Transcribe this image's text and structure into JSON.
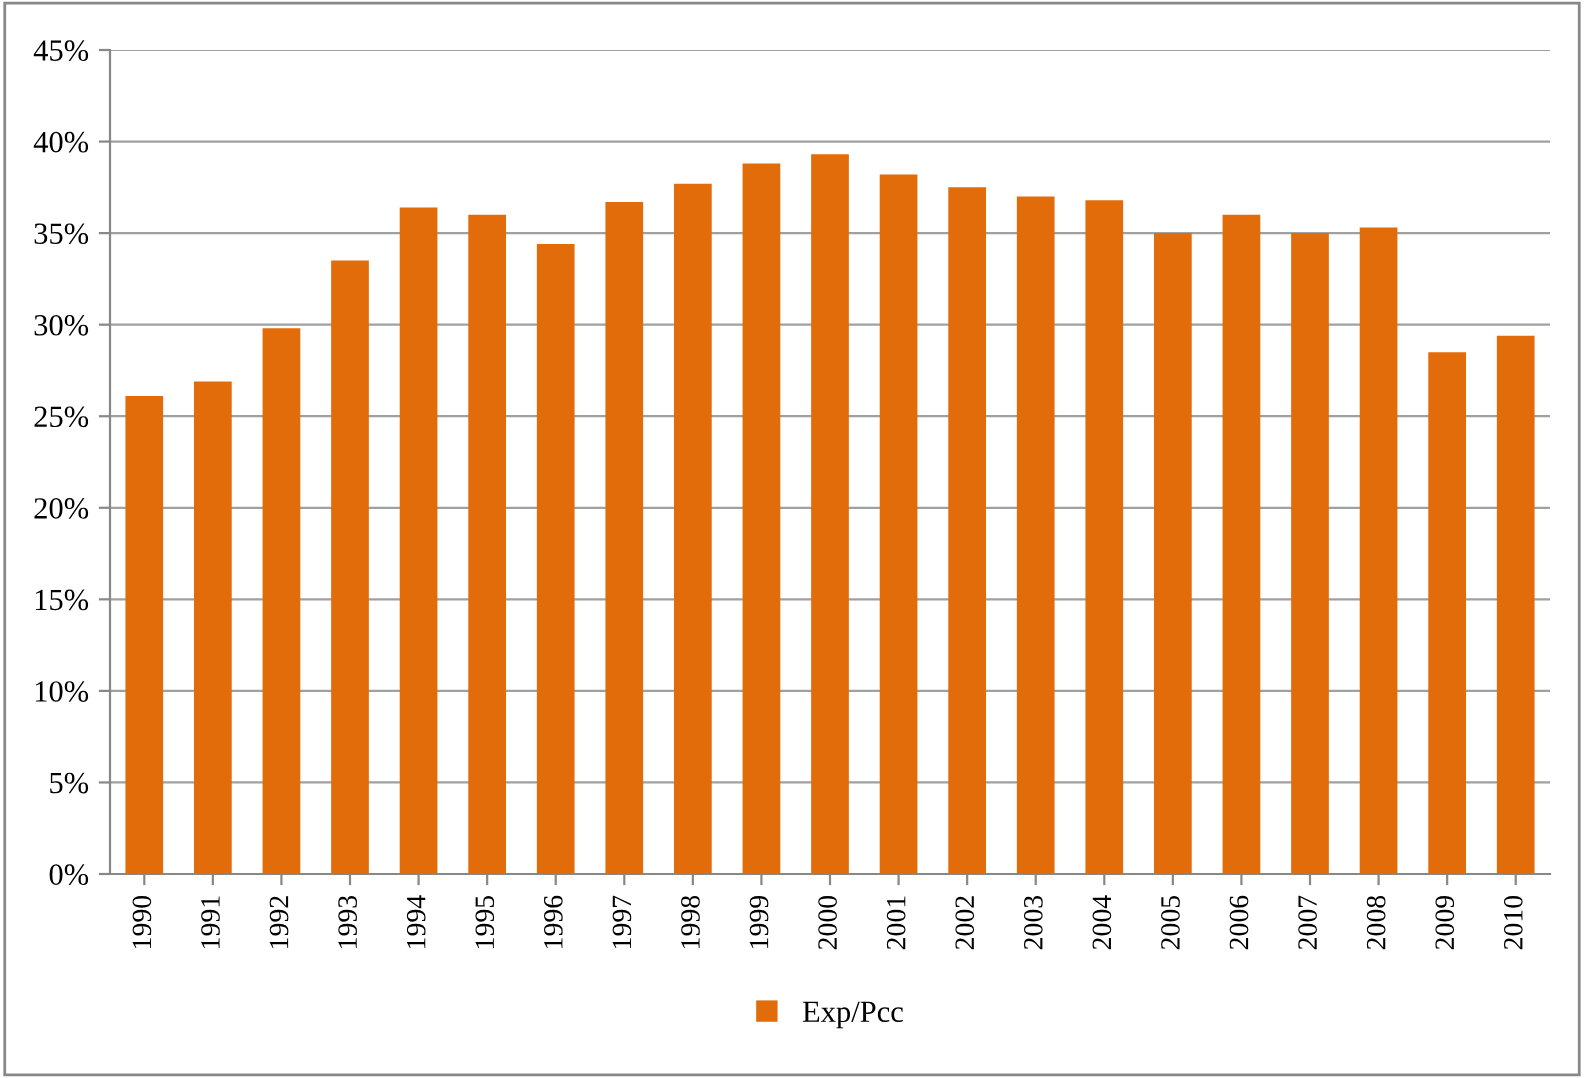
{
  "chart_data": {
    "type": "bar",
    "categories": [
      "1990",
      "1991",
      "1992",
      "1993",
      "1994",
      "1995",
      "1996",
      "1997",
      "1998",
      "1999",
      "2000",
      "2001",
      "2002",
      "2003",
      "2004",
      "2005",
      "2006",
      "2007",
      "2008",
      "2009",
      "2010"
    ],
    "series": [
      {
        "name": "Exp/Pcc",
        "color": "#e36c0a",
        "values": [
          26.1,
          26.9,
          29.8,
          33.5,
          36.4,
          36.0,
          34.4,
          36.7,
          37.7,
          38.8,
          39.3,
          38.2,
          37.5,
          37.0,
          36.8,
          35.0,
          36.0,
          35.0,
          35.3,
          28.5,
          29.4
        ]
      }
    ],
    "ylim": [
      0,
      45
    ],
    "yticks": [
      {
        "value": 0,
        "label": "0%"
      },
      {
        "value": 5,
        "label": "5%"
      },
      {
        "value": 10,
        "label": "10%"
      },
      {
        "value": 15,
        "label": "15%"
      },
      {
        "value": 20,
        "label": "20%"
      },
      {
        "value": 25,
        "label": "25%"
      },
      {
        "value": 30,
        "label": "30%"
      },
      {
        "value": 35,
        "label": "35%"
      },
      {
        "value": 40,
        "label": "40%"
      },
      {
        "value": 45,
        "label": "45%"
      }
    ],
    "grid": "y",
    "legend": "bottom"
  }
}
